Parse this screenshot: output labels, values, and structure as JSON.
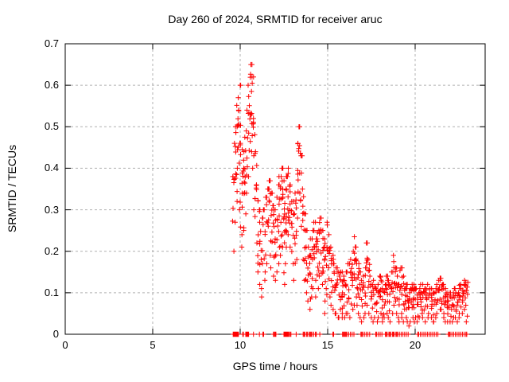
{
  "figure": {
    "kind": "gnuplot scatter screenshot"
  },
  "colors": {
    "background": "#ffffff",
    "frame": "#000000",
    "grid": "#b0b0b0",
    "marker": "#ff0000",
    "text": "#000000"
  },
  "chart_data": {
    "type": "scatter",
    "title": "Day 260 of 2024, SRMTID for receiver aruc",
    "xlabel": "GPS time / hours",
    "ylabel": "SRMTID / TECUs",
    "xlim": [
      0,
      24
    ],
    "ylim": [
      0,
      0.7
    ],
    "xticks": [
      0,
      5,
      10,
      15,
      20
    ],
    "xtick_labels": [
      "0",
      "5",
      "10",
      "15",
      "20"
    ],
    "yticks": [
      0,
      0.1,
      0.2,
      0.3,
      0.4,
      0.5,
      0.6,
      0.7
    ],
    "ytick_labels": [
      "0",
      "0.1",
      "0.2",
      "0.3",
      "0.4",
      "0.5",
      "0.6",
      "0.7"
    ],
    "grid": "dashed",
    "legend_position": "none",
    "marker": "plus",
    "marker_color": "#ff0000",
    "data_start_hour": 9.6,
    "data_end_hour": 23.0,
    "peak": {
      "x": 10.65,
      "y": 0.65
    },
    "secondary_peak": {
      "x": 13.4,
      "y": 0.5
    },
    "clusters_format": "[x_hours, y_min, y_max, n_points] vertical streaks of + markers",
    "clusters": [
      [
        9.62,
        0.2,
        0.38,
        6
      ],
      [
        9.7,
        0.27,
        0.46,
        7
      ],
      [
        9.78,
        0.32,
        0.5,
        7
      ],
      [
        9.87,
        0.4,
        0.57,
        8
      ],
      [
        9.96,
        0.3,
        0.6,
        9
      ],
      [
        10.05,
        0.24,
        0.46,
        8
      ],
      [
        10.14,
        0.21,
        0.4,
        7
      ],
      [
        10.24,
        0.25,
        0.44,
        7
      ],
      [
        10.33,
        0.29,
        0.49,
        7
      ],
      [
        10.43,
        0.34,
        0.54,
        8
      ],
      [
        10.52,
        0.38,
        0.6,
        8
      ],
      [
        10.62,
        0.44,
        0.65,
        9
      ],
      [
        10.71,
        0.4,
        0.62,
        8
      ],
      [
        10.8,
        0.3,
        0.52,
        8
      ],
      [
        10.9,
        0.22,
        0.44,
        7
      ],
      [
        10.98,
        0.15,
        0.36,
        7
      ],
      [
        11.08,
        0.12,
        0.3,
        7
      ],
      [
        11.18,
        0.09,
        0.27,
        6
      ],
      [
        11.28,
        0.11,
        0.28,
        6
      ],
      [
        11.38,
        0.13,
        0.3,
        6
      ],
      [
        11.48,
        0.15,
        0.33,
        7
      ],
      [
        11.58,
        0.17,
        0.35,
        7
      ],
      [
        11.68,
        0.19,
        0.37,
        7
      ],
      [
        11.78,
        0.16,
        0.34,
        7
      ],
      [
        11.88,
        0.14,
        0.31,
        7
      ],
      [
        11.98,
        0.13,
        0.3,
        7
      ],
      [
        12.08,
        0.15,
        0.33,
        8
      ],
      [
        12.18,
        0.17,
        0.36,
        8
      ],
      [
        12.28,
        0.19,
        0.38,
        9
      ],
      [
        12.38,
        0.21,
        0.4,
        9
      ],
      [
        12.48,
        0.12,
        0.37,
        9
      ],
      [
        12.58,
        0.17,
        0.35,
        9
      ],
      [
        12.68,
        0.21,
        0.38,
        9
      ],
      [
        12.78,
        0.24,
        0.4,
        9
      ],
      [
        12.88,
        0.21,
        0.36,
        8
      ],
      [
        12.98,
        0.17,
        0.32,
        8
      ],
      [
        13.08,
        0.13,
        0.29,
        7
      ],
      [
        13.18,
        0.18,
        0.34,
        7
      ],
      [
        13.28,
        0.28,
        0.46,
        8
      ],
      [
        13.38,
        0.34,
        0.5,
        8
      ],
      [
        13.48,
        0.26,
        0.43,
        7
      ],
      [
        13.58,
        0.18,
        0.35,
        7
      ],
      [
        13.68,
        0.13,
        0.29,
        7
      ],
      [
        13.78,
        0.1,
        0.25,
        7
      ],
      [
        13.88,
        0.08,
        0.21,
        7
      ],
      [
        13.98,
        0.06,
        0.19,
        7
      ],
      [
        14.08,
        0.09,
        0.23,
        7
      ],
      [
        14.18,
        0.11,
        0.25,
        7
      ],
      [
        14.28,
        0.13,
        0.27,
        7
      ],
      [
        14.38,
        0.09,
        0.23,
        7
      ],
      [
        14.48,
        0.11,
        0.25,
        7
      ],
      [
        14.58,
        0.14,
        0.28,
        7
      ],
      [
        14.68,
        0.12,
        0.25,
        7
      ],
      [
        14.78,
        0.05,
        0.23,
        7
      ],
      [
        14.88,
        0.08,
        0.21,
        7
      ],
      [
        14.98,
        0.11,
        0.27,
        7
      ],
      [
        15.08,
        0.09,
        0.24,
        7
      ],
      [
        15.18,
        0.07,
        0.21,
        6
      ],
      [
        15.28,
        0.06,
        0.19,
        6
      ],
      [
        15.38,
        0.05,
        0.17,
        6
      ],
      [
        15.48,
        0.05,
        0.16,
        6
      ],
      [
        15.58,
        0.04,
        0.15,
        6
      ],
      [
        15.68,
        0.04,
        0.14,
        6
      ],
      [
        15.78,
        0.05,
        0.15,
        6
      ],
      [
        15.88,
        0.04,
        0.14,
        6
      ],
      [
        15.98,
        0.04,
        0.13,
        6
      ],
      [
        16.08,
        0.05,
        0.15,
        6
      ],
      [
        16.18,
        0.05,
        0.17,
        6
      ],
      [
        16.28,
        0.04,
        0.15,
        6
      ],
      [
        16.38,
        0.06,
        0.18,
        6
      ],
      [
        16.48,
        0.07,
        0.2,
        6
      ],
      [
        16.58,
        0.09,
        0.235,
        7
      ],
      [
        16.68,
        0.07,
        0.21,
        7
      ],
      [
        16.78,
        0.05,
        0.17,
        6
      ],
      [
        16.88,
        0.04,
        0.15,
        6
      ],
      [
        16.98,
        0.03,
        0.13,
        6
      ],
      [
        17.08,
        0.04,
        0.14,
        6
      ],
      [
        17.18,
        0.05,
        0.16,
        6
      ],
      [
        17.28,
        0.07,
        0.22,
        7
      ],
      [
        17.38,
        0.05,
        0.18,
        6
      ],
      [
        17.48,
        0.04,
        0.14,
        6
      ],
      [
        17.58,
        0.03,
        0.12,
        6
      ],
      [
        17.68,
        0.04,
        0.13,
        6
      ],
      [
        17.78,
        0.03,
        0.11,
        6
      ],
      [
        17.88,
        0.04,
        0.12,
        6
      ],
      [
        17.98,
        0.05,
        0.14,
        6
      ],
      [
        18.08,
        0.04,
        0.13,
        6
      ],
      [
        18.18,
        0.03,
        0.11,
        6
      ],
      [
        18.28,
        0.04,
        0.12,
        6
      ],
      [
        18.38,
        0.05,
        0.14,
        6
      ],
      [
        18.48,
        0.04,
        0.13,
        6
      ],
      [
        18.58,
        0.03,
        0.12,
        6
      ],
      [
        18.68,
        0.05,
        0.15,
        6
      ],
      [
        18.78,
        0.07,
        0.19,
        7
      ],
      [
        18.88,
        0.05,
        0.16,
        6
      ],
      [
        18.98,
        0.04,
        0.14,
        6
      ],
      [
        19.08,
        0.03,
        0.12,
        6
      ],
      [
        19.18,
        0.05,
        0.16,
        6
      ],
      [
        19.28,
        0.04,
        0.14,
        6
      ],
      [
        19.38,
        0.03,
        0.11,
        6
      ],
      [
        19.48,
        0.04,
        0.12,
        6
      ],
      [
        19.58,
        0.03,
        0.11,
        6
      ],
      [
        19.68,
        0.02,
        0.1,
        6
      ],
      [
        19.78,
        0.03,
        0.11,
        6
      ],
      [
        19.88,
        0.04,
        0.12,
        6
      ],
      [
        19.98,
        0.03,
        0.11,
        6
      ],
      [
        20.08,
        0.04,
        0.11,
        6
      ],
      [
        20.18,
        0.03,
        0.1,
        6
      ],
      [
        20.28,
        0.04,
        0.11,
        6
      ],
      [
        20.38,
        0.05,
        0.12,
        6
      ],
      [
        20.48,
        0.04,
        0.11,
        6
      ],
      [
        20.58,
        0.03,
        0.1,
        6
      ],
      [
        20.68,
        0.04,
        0.11,
        6
      ],
      [
        20.78,
        0.05,
        0.12,
        6
      ],
      [
        20.88,
        0.04,
        0.11,
        6
      ],
      [
        20.98,
        0.03,
        0.1,
        6
      ],
      [
        21.08,
        0.03,
        0.1,
        6
      ],
      [
        21.18,
        0.04,
        0.11,
        6
      ],
      [
        21.28,
        0.05,
        0.12,
        6
      ],
      [
        21.38,
        0.06,
        0.13,
        6
      ],
      [
        21.48,
        0.06,
        0.135,
        6
      ],
      [
        21.58,
        0.05,
        0.12,
        6
      ],
      [
        21.68,
        0.04,
        0.11,
        6
      ],
      [
        21.78,
        0.03,
        0.1,
        6
      ],
      [
        21.88,
        0.03,
        0.09,
        6
      ],
      [
        21.98,
        0.03,
        0.1,
        6
      ],
      [
        22.08,
        0.03,
        0.09,
        6
      ],
      [
        22.18,
        0.04,
        0.1,
        6
      ],
      [
        22.28,
        0.04,
        0.11,
        6
      ],
      [
        22.38,
        0.03,
        0.1,
        6
      ],
      [
        22.48,
        0.04,
        0.11,
        6
      ],
      [
        22.58,
        0.05,
        0.12,
        6
      ],
      [
        22.68,
        0.05,
        0.11,
        6
      ],
      [
        22.78,
        0.06,
        0.12,
        7
      ],
      [
        22.88,
        0.07,
        0.13,
        7
      ],
      [
        22.97,
        0.03,
        0.125,
        7
      ]
    ],
    "zero_marker_x": [
      9.6,
      9.63,
      9.66,
      9.69,
      9.72,
      9.75,
      9.78,
      9.82,
      9.86,
      9.9,
      10.15,
      10.18,
      10.32,
      10.36,
      10.4,
      10.44,
      10.48,
      10.76,
      11.1,
      11.3,
      11.34,
      11.9,
      11.95,
      12.0,
      12.04,
      12.5,
      12.54,
      12.58,
      12.62,
      12.66,
      12.7,
      12.74,
      12.78,
      12.85,
      12.9,
      13.2,
      13.6,
      13.65,
      13.7,
      13.8,
      13.85,
      13.95,
      14.0,
      14.05,
      14.1,
      14.2,
      14.3,
      14.35,
      14.55,
      15.3,
      15.34,
      15.85,
      15.9,
      15.95,
      16.0,
      16.05,
      16.1,
      16.2,
      16.3,
      16.4,
      16.5,
      16.9,
      16.95,
      17.0,
      17.1,
      17.2,
      17.3,
      17.4,
      17.75,
      17.8,
      17.9,
      18.0,
      18.1,
      18.3,
      18.35,
      18.4,
      18.5,
      18.55,
      18.6,
      18.7,
      18.75,
      18.8,
      18.9,
      18.95,
      19.0,
      19.1,
      19.2,
      19.3,
      19.4,
      19.5,
      19.6,
      20.15,
      20.2,
      20.3,
      20.4,
      20.5,
      20.6,
      20.7,
      20.8,
      20.9,
      21.0,
      21.1,
      21.2,
      21.3,
      21.9,
      21.95,
      22.0,
      22.1,
      22.2,
      22.3,
      22.4,
      22.5,
      22.6,
      22.7,
      22.8,
      22.9,
      22.95
    ]
  }
}
